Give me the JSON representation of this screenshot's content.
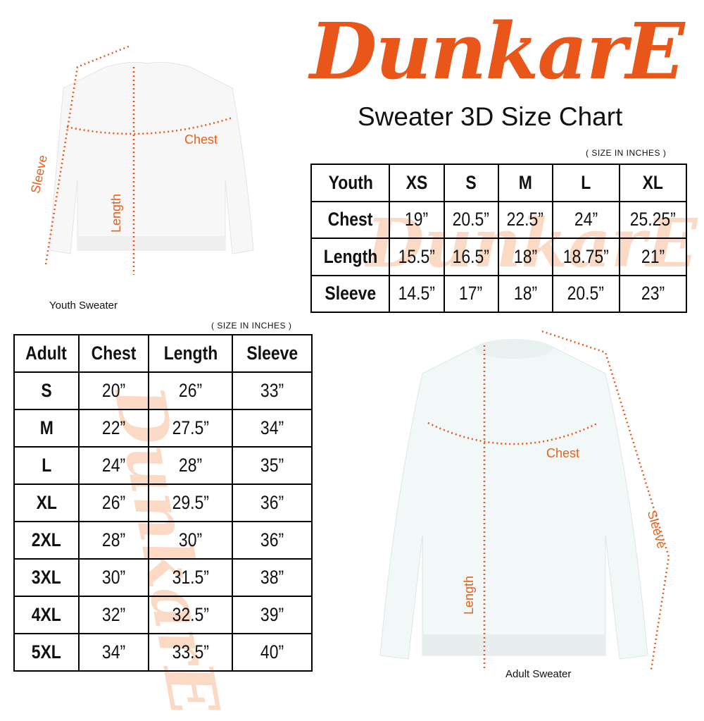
{
  "brand": "DunkarE",
  "title": "Sweater 3D Size Chart",
  "colors": {
    "accent": "#e8561a",
    "watermark": "#f9c9ad"
  },
  "youth": {
    "caption": "Youth Sweater",
    "note": "( SIZE IN INCHES )",
    "labels": {
      "chest": "Chest",
      "length": "Length",
      "sleeve": "Sleeve"
    },
    "headers": [
      "Youth",
      "XS",
      "S",
      "M",
      "L",
      "XL"
    ],
    "rows": [
      [
        "Chest",
        "19”",
        "20.5”",
        "22.5”",
        "24”",
        "25.25”"
      ],
      [
        "Length",
        "15.5”",
        "16.5”",
        "18”",
        "18.75”",
        "21”"
      ],
      [
        "Sleeve",
        "14.5”",
        "17”",
        "18”",
        "20.5”",
        "23”"
      ]
    ]
  },
  "adult": {
    "caption": "Adult Sweater",
    "note": "( SIZE IN INCHES )",
    "labels": {
      "chest": "Chest",
      "length": "Length",
      "sleeve": "Sleeve"
    },
    "headers": [
      "Adult",
      "Chest",
      "Length",
      "Sleeve"
    ],
    "rows": [
      [
        "S",
        "20”",
        "26”",
        "33”"
      ],
      [
        "M",
        "22”",
        "27.5”",
        "34”"
      ],
      [
        "L",
        "24”",
        "28”",
        "35”"
      ],
      [
        "XL",
        "26”",
        "29.5”",
        "36”"
      ],
      [
        "2XL",
        "28”",
        "30”",
        "36”"
      ],
      [
        "3XL",
        "30”",
        "31.5”",
        "38”"
      ],
      [
        "4XL",
        "32”",
        "32.5”",
        "39”"
      ],
      [
        "5XL",
        "34”",
        "33.5”",
        "40”"
      ]
    ]
  }
}
